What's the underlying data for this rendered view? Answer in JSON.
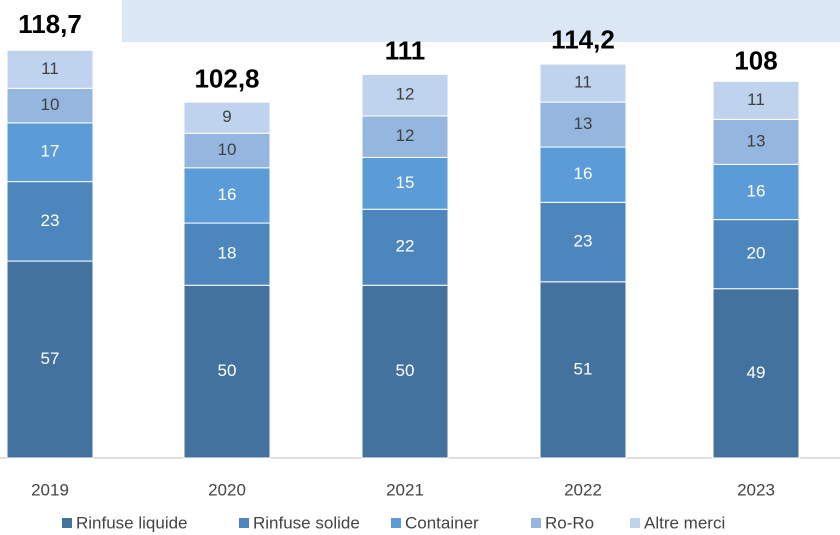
{
  "chart_data": {
    "type": "stacked_bar",
    "categories": [
      "2019",
      "2020",
      "2021",
      "2022",
      "2023"
    ],
    "series": [
      {
        "name": "Rinfuse liquide",
        "color": "#44729f",
        "values": [
          57,
          50,
          50,
          51,
          49
        ]
      },
      {
        "name": "Rinfuse solide",
        "color": "#4d86bd",
        "values": [
          23,
          18,
          22,
          23,
          20
        ]
      },
      {
        "name": "Container",
        "color": "#5b9bd8",
        "values": [
          17,
          16,
          15,
          16,
          16
        ]
      },
      {
        "name": "Ro-Ro",
        "color": "#95b6df",
        "values": [
          10,
          10,
          12,
          13,
          13
        ]
      },
      {
        "name": "Altre merci",
        "color": "#bfd3ee",
        "values": [
          11,
          9,
          12,
          11,
          11
        ]
      }
    ],
    "totals": [
      118.7,
      102.8,
      111,
      114.2,
      108
    ],
    "totals_labels": [
      "118,7",
      "102,8",
      "111",
      "114,2",
      "108"
    ],
    "legend": "bottom"
  }
}
